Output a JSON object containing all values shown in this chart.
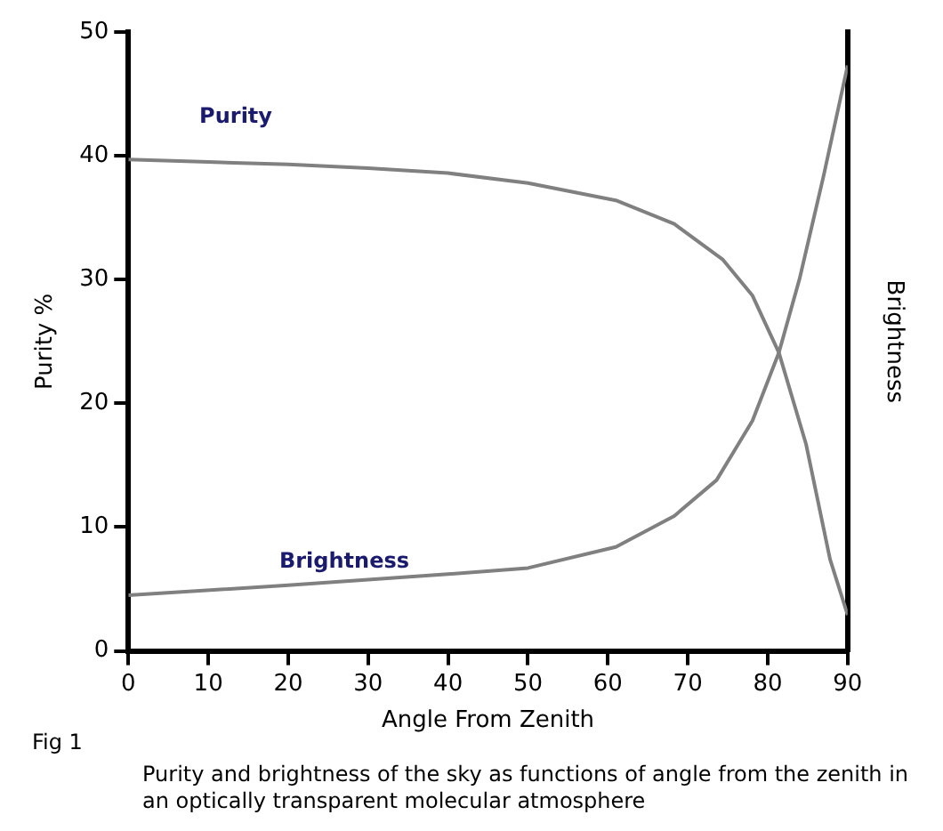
{
  "chart_data": {
    "type": "line",
    "xlabel": "Angle From Zenith",
    "ylabel": "Purity %",
    "y2label": "Brightness",
    "xlim": [
      0,
      90
    ],
    "xticks": [
      0,
      10,
      20,
      30,
      40,
      50,
      60,
      70,
      80,
      90
    ],
    "ylim": [
      0,
      50
    ],
    "yticks": [
      0,
      10,
      20,
      30,
      40,
      50
    ],
    "grid": false,
    "marker": "none",
    "line_style": "solid",
    "series": [
      {
        "name": "Purity",
        "color": "#808080",
        "x": [
          0,
          10,
          20,
          30,
          40,
          50,
          61,
          68.3,
          74.4,
          78.1,
          81.4,
          84.8,
          87.8,
          90
        ],
        "values": [
          39.7,
          39.5,
          39.3,
          39,
          38.6,
          37.8,
          36.4,
          34.5,
          31.6,
          28.7,
          24.1,
          16.7,
          7.4,
          2.9
        ]
      },
      {
        "name": "Brightness",
        "color": "#808080",
        "x": [
          0,
          20,
          40,
          50,
          61,
          68.3,
          73.6,
          78.1,
          81.4,
          84,
          87,
          90
        ],
        "values": [
          4.5,
          5.3,
          6.2,
          6.7,
          8.4,
          10.9,
          13.8,
          18.6,
          24.1,
          30.1,
          38.4,
          47.3
        ]
      }
    ],
    "annotations": [
      "Fig 1",
      "Purity and brightness of the sky as functions of angle from the zenith in an optically transparent molecular atmosphere"
    ]
  }
}
